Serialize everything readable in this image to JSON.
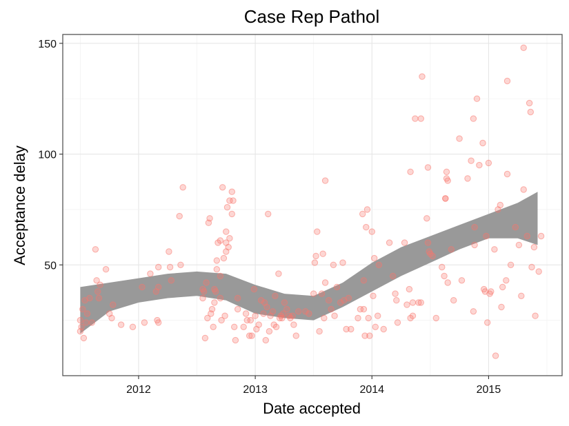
{
  "chart_data": {
    "type": "scatter",
    "title": "Case Rep Pathol",
    "xlabel": "Date accepted",
    "ylabel": "Acceptance delay",
    "xlim": [
      2011.35,
      2015.63
    ],
    "ylim": [
      0,
      154
    ],
    "x_ticks": [
      2012,
      2013,
      2014,
      2015
    ],
    "x_tick_labels": [
      "2012",
      "2013",
      "2014",
      "2015"
    ],
    "y_ticks": [
      50,
      100,
      150
    ],
    "y_tick_labels": [
      "50",
      "100",
      "150"
    ],
    "grid": true,
    "point_color": "#f8766d",
    "band_color": "#999999",
    "smooth_band": {
      "x": [
        2011.5,
        2011.75,
        2012.0,
        2012.25,
        2012.5,
        2012.75,
        2013.0,
        2013.25,
        2013.5,
        2013.75,
        2014.0,
        2014.25,
        2014.5,
        2014.75,
        2015.0,
        2015.25,
        2015.42
      ],
      "upper": [
        40,
        42,
        44,
        46,
        47,
        46,
        41,
        37,
        36,
        42,
        51,
        58,
        63,
        68,
        73,
        78,
        83
      ],
      "lower": [
        19,
        29,
        33,
        35,
        36,
        34,
        28,
        26,
        25,
        31,
        38,
        45,
        51,
        57,
        62,
        62,
        59
      ]
    },
    "points": [
      [
        2011.5,
        20
      ],
      [
        2011.5,
        25
      ],
      [
        2011.51,
        22
      ],
      [
        2011.52,
        30
      ],
      [
        2011.53,
        17
      ],
      [
        2011.54,
        34
      ],
      [
        2011.55,
        24
      ],
      [
        2011.56,
        28
      ],
      [
        2011.58,
        35
      ],
      [
        2011.6,
        24
      ],
      [
        2011.63,
        57
      ],
      [
        2011.64,
        43
      ],
      [
        2011.65,
        38
      ],
      [
        2011.66,
        35
      ],
      [
        2011.67,
        41
      ],
      [
        2011.72,
        48
      ],
      [
        2011.75,
        28
      ],
      [
        2011.77,
        26
      ],
      [
        2011.78,
        32
      ],
      [
        2011.85,
        23
      ],
      [
        2011.95,
        22
      ],
      [
        2012.03,
        40
      ],
      [
        2012.05,
        24
      ],
      [
        2012.1,
        46
      ],
      [
        2012.15,
        38
      ],
      [
        2012.17,
        49
      ],
      [
        2012.17,
        40
      ],
      [
        2012.16,
        25
      ],
      [
        2012.17,
        24
      ],
      [
        2012.26,
        56
      ],
      [
        2012.27,
        49
      ],
      [
        2012.28,
        43
      ],
      [
        2012.35,
        72
      ],
      [
        2012.36,
        50
      ],
      [
        2012.38,
        85
      ],
      [
        2012.55,
        39
      ],
      [
        2012.55,
        35
      ],
      [
        2012.56,
        38
      ],
      [
        2012.57,
        17
      ],
      [
        2012.58,
        42
      ],
      [
        2012.59,
        26
      ],
      [
        2012.6,
        69
      ],
      [
        2012.61,
        71
      ],
      [
        2012.62,
        28
      ],
      [
        2012.63,
        30
      ],
      [
        2012.64,
        22
      ],
      [
        2012.65,
        39
      ],
      [
        2012.65,
        33
      ],
      [
        2012.66,
        38
      ],
      [
        2012.67,
        52
      ],
      [
        2012.67,
        48
      ],
      [
        2012.68,
        60
      ],
      [
        2012.7,
        61
      ],
      [
        2012.7,
        45
      ],
      [
        2012.7,
        35
      ],
      [
        2012.71,
        25
      ],
      [
        2012.72,
        85
      ],
      [
        2012.73,
        53
      ],
      [
        2012.74,
        27
      ],
      [
        2012.75,
        65
      ],
      [
        2012.75,
        56
      ],
      [
        2012.75,
        60
      ],
      [
        2012.76,
        76
      ],
      [
        2012.77,
        58
      ],
      [
        2012.78,
        62
      ],
      [
        2012.78,
        79
      ],
      [
        2012.8,
        73
      ],
      [
        2012.81,
        79
      ],
      [
        2012.8,
        83
      ],
      [
        2012.82,
        22
      ],
      [
        2012.83,
        16
      ],
      [
        2012.85,
        30
      ],
      [
        2012.85,
        35
      ],
      [
        2012.9,
        22
      ],
      [
        2012.92,
        28
      ],
      [
        2012.93,
        25
      ],
      [
        2012.95,
        18
      ],
      [
        2012.96,
        25
      ],
      [
        2012.97,
        18
      ],
      [
        2012.99,
        39
      ],
      [
        2013.0,
        27
      ],
      [
        2013.01,
        21
      ],
      [
        2013.03,
        23
      ],
      [
        2013.05,
        34
      ],
      [
        2013.07,
        28
      ],
      [
        2013.08,
        33
      ],
      [
        2013.09,
        16
      ],
      [
        2013.1,
        31
      ],
      [
        2013.11,
        73
      ],
      [
        2013.12,
        20
      ],
      [
        2013.13,
        27
      ],
      [
        2013.15,
        29
      ],
      [
        2013.16,
        23
      ],
      [
        2013.17,
        36
      ],
      [
        2013.18,
        22
      ],
      [
        2013.2,
        46
      ],
      [
        2013.21,
        26
      ],
      [
        2013.22,
        27
      ],
      [
        2013.23,
        26
      ],
      [
        2013.24,
        28
      ],
      [
        2013.25,
        33
      ],
      [
        2013.27,
        30
      ],
      [
        2013.29,
        27
      ],
      [
        2013.3,
        26
      ],
      [
        2013.32,
        27
      ],
      [
        2013.33,
        23
      ],
      [
        2013.35,
        18
      ],
      [
        2013.37,
        29
      ],
      [
        2013.43,
        29
      ],
      [
        2013.46,
        28
      ],
      [
        2013.5,
        37
      ],
      [
        2013.51,
        51
      ],
      [
        2013.52,
        54
      ],
      [
        2013.53,
        65
      ],
      [
        2013.55,
        20
      ],
      [
        2013.57,
        37
      ],
      [
        2013.58,
        55
      ],
      [
        2013.59,
        26
      ],
      [
        2013.6,
        42
      ],
      [
        2013.6,
        88
      ],
      [
        2013.63,
        34
      ],
      [
        2013.65,
        30
      ],
      [
        2013.67,
        50
      ],
      [
        2013.68,
        27
      ],
      [
        2013.7,
        40
      ],
      [
        2013.73,
        33
      ],
      [
        2013.75,
        51
      ],
      [
        2013.76,
        34
      ],
      [
        2013.78,
        21
      ],
      [
        2013.8,
        35
      ],
      [
        2013.82,
        21
      ],
      [
        2013.88,
        26
      ],
      [
        2013.9,
        30
      ],
      [
        2013.92,
        73
      ],
      [
        2013.93,
        30
      ],
      [
        2013.93,
        43
      ],
      [
        2013.94,
        18
      ],
      [
        2013.95,
        67
      ],
      [
        2013.96,
        75
      ],
      [
        2013.97,
        26
      ],
      [
        2013.98,
        18
      ],
      [
        2014.0,
        65
      ],
      [
        2014.01,
        36
      ],
      [
        2014.02,
        53
      ],
      [
        2014.03,
        22
      ],
      [
        2014.05,
        27
      ],
      [
        2014.06,
        50
      ],
      [
        2014.1,
        21
      ],
      [
        2014.15,
        60
      ],
      [
        2014.18,
        45
      ],
      [
        2014.2,
        37
      ],
      [
        2014.21,
        34
      ],
      [
        2014.22,
        24
      ],
      [
        2014.28,
        60
      ],
      [
        2014.3,
        32
      ],
      [
        2014.32,
        39
      ],
      [
        2014.33,
        92
      ],
      [
        2014.33,
        26
      ],
      [
        2014.35,
        27
      ],
      [
        2014.35,
        33
      ],
      [
        2014.37,
        116
      ],
      [
        2014.4,
        33
      ],
      [
        2014.42,
        116
      ],
      [
        2014.42,
        33
      ],
      [
        2014.43,
        135
      ],
      [
        2014.47,
        71
      ],
      [
        2014.48,
        94
      ],
      [
        2014.48,
        60
      ],
      [
        2014.49,
        56
      ],
      [
        2014.5,
        55
      ],
      [
        2014.52,
        54
      ],
      [
        2014.55,
        26
      ],
      [
        2014.6,
        49
      ],
      [
        2014.62,
        45
      ],
      [
        2014.63,
        80
      ],
      [
        2014.63,
        80
      ],
      [
        2014.64,
        92
      ],
      [
        2014.64,
        89
      ],
      [
        2014.65,
        88
      ],
      [
        2014.65,
        42
      ],
      [
        2014.68,
        57
      ],
      [
        2014.7,
        34
      ],
      [
        2014.75,
        107
      ],
      [
        2014.77,
        43
      ],
      [
        2014.82,
        89
      ],
      [
        2014.85,
        97
      ],
      [
        2014.87,
        116
      ],
      [
        2014.87,
        29
      ],
      [
        2014.88,
        67
      ],
      [
        2014.88,
        59
      ],
      [
        2014.9,
        125
      ],
      [
        2014.92,
        95
      ],
      [
        2014.95,
        105
      ],
      [
        2014.96,
        39
      ],
      [
        2014.97,
        38
      ],
      [
        2014.98,
        63
      ],
      [
        2014.99,
        24
      ],
      [
        2015.0,
        96
      ],
      [
        2015.01,
        37
      ],
      [
        2015.02,
        38
      ],
      [
        2015.05,
        57
      ],
      [
        2015.06,
        9
      ],
      [
        2015.08,
        75
      ],
      [
        2015.1,
        77
      ],
      [
        2015.11,
        31
      ],
      [
        2015.12,
        40
      ],
      [
        2015.15,
        43
      ],
      [
        2015.16,
        133
      ],
      [
        2015.16,
        91
      ],
      [
        2015.19,
        50
      ],
      [
        2015.23,
        67
      ],
      [
        2015.26,
        59
      ],
      [
        2015.28,
        36
      ],
      [
        2015.3,
        148
      ],
      [
        2015.3,
        84
      ],
      [
        2015.33,
        63
      ],
      [
        2015.35,
        123
      ],
      [
        2015.36,
        119
      ],
      [
        2015.37,
        49
      ],
      [
        2015.39,
        58
      ],
      [
        2015.4,
        27
      ],
      [
        2015.43,
        47
      ],
      [
        2015.45,
        63
      ]
    ]
  }
}
